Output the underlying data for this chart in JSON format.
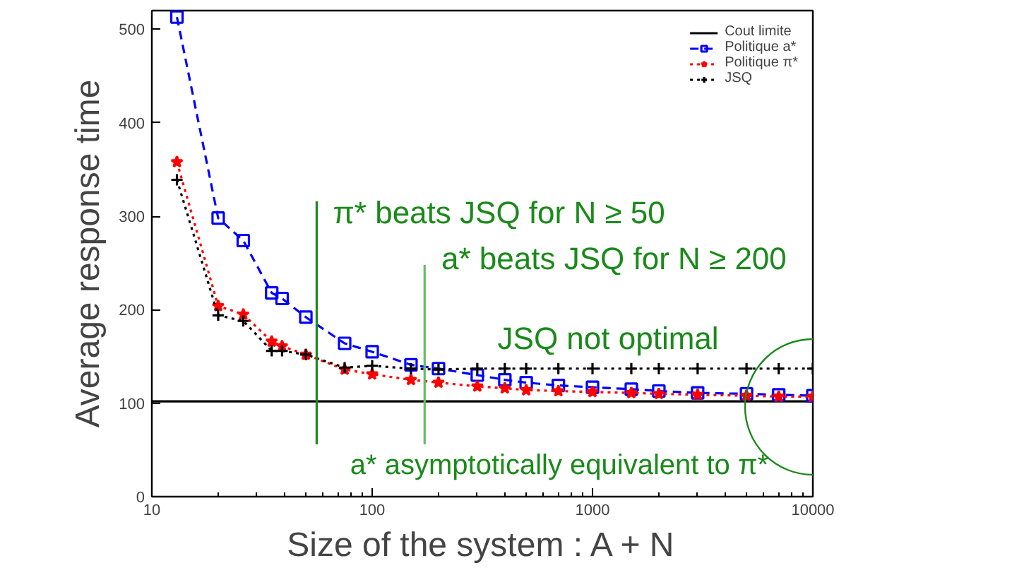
{
  "chart_data": {
    "type": "line",
    "xlabel": "Size of the system : A + N",
    "ylabel": "Average response time",
    "x": [
      13,
      20,
      26,
      35,
      39,
      50,
      75,
      100,
      150,
      200,
      300,
      400,
      500,
      700,
      1000,
      1500,
      2000,
      3000,
      5000,
      7000,
      10000
    ],
    "series": [
      {
        "name": "Cout limite",
        "color": "#000000",
        "line_style": "solid",
        "marker": "none",
        "x": [
          10,
          10000
        ],
        "values": [
          102,
          102
        ]
      },
      {
        "name": "Politique a*",
        "color": "#0000ff",
        "line_style": "dashed",
        "marker": "square",
        "values": [
          513,
          298,
          274,
          218,
          212,
          192,
          164,
          155,
          141,
          137,
          130,
          125,
          122,
          119,
          117,
          115,
          113,
          111,
          110,
          109,
          108
        ]
      },
      {
        "name": "Politique π*",
        "color": "#ff0000",
        "line_style": "dotted",
        "marker": "star",
        "values": [
          358,
          204,
          195,
          166,
          161,
          152,
          136,
          131,
          125,
          122,
          118,
          116,
          114,
          113,
          112,
          111,
          110,
          109,
          108,
          107,
          107
        ]
      },
      {
        "name": "JSQ",
        "color": "#000000",
        "line_style": "dotted",
        "marker": "cross",
        "values": [
          339,
          194,
          188,
          156,
          156,
          152,
          138,
          140,
          137,
          136,
          137,
          137,
          137,
          137,
          137,
          137,
          137,
          137,
          137,
          137,
          137
        ]
      },
      {
        "color": "#1a8a1a",
        "line_style": "solid",
        "marker": "none",
        "x": [
          56,
          56
        ],
        "values": [
          56,
          316
        ]
      },
      {
        "color": "#66bb66",
        "line_style": "solid",
        "marker": "none",
        "x": [
          173,
          173
        ],
        "values": [
          56,
          248
        ]
      }
    ],
    "annotations": [
      "π* beats JSQ for N ≥ 50",
      "a* beats JSQ for N ≥ 200",
      "JSQ not optimal",
      "a* asymptotically equivalent to π*"
    ],
    "log": "x",
    "xlim": [
      10,
      10000
    ],
    "xticks": [
      10,
      100,
      1000,
      10000
    ],
    "ylim": [
      0,
      520
    ],
    "yticks": [
      0,
      100,
      200,
      300,
      400,
      500
    ],
    "grid": false,
    "legend": "top right"
  }
}
